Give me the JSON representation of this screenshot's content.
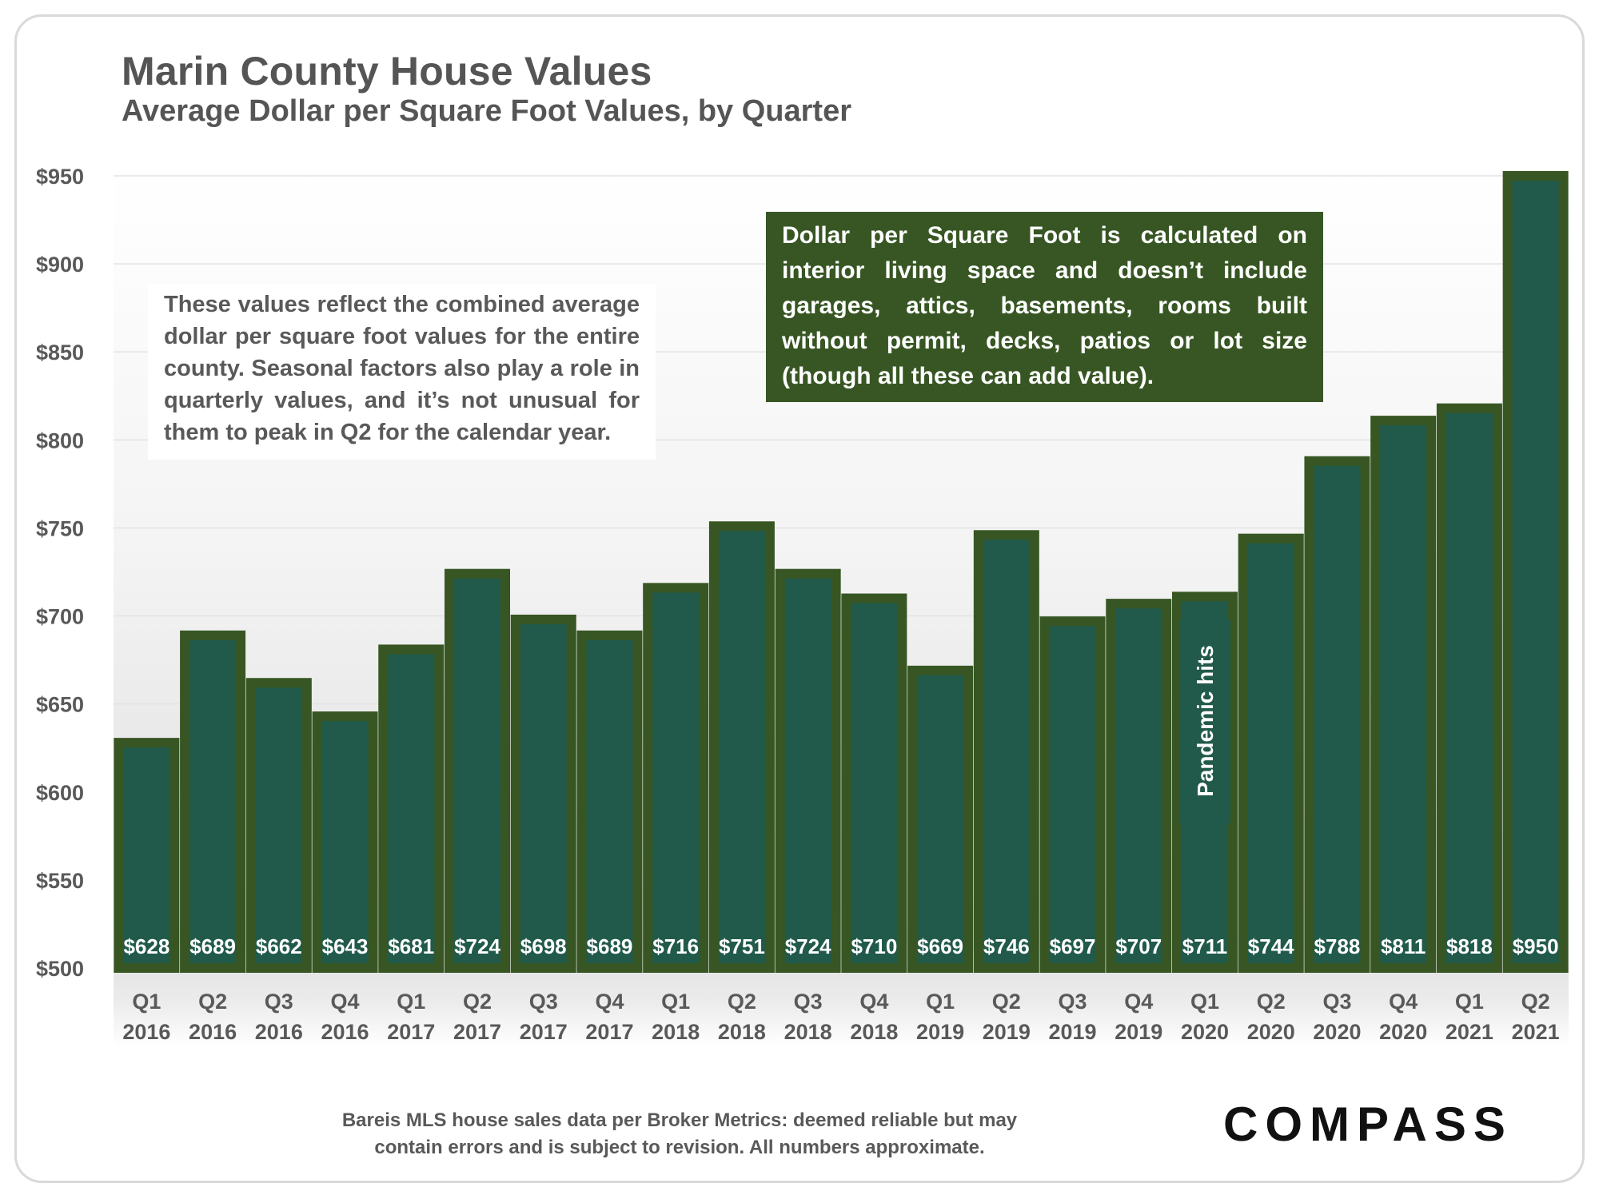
{
  "header": {
    "title": "Marin County House Values",
    "subtitle": "Average Dollar per Square Foot Values, by Quarter"
  },
  "notes": {
    "left": "These values reflect the combined average dollar per square foot values for the entire county. Seasonal factors also play a role in quarterly values, and it’s not unusual for them to peak in Q2 for the calendar year.",
    "right": "Dollar per Square Foot is calculated on interior living space and doesn’t include garages, attics, basements, rooms built without permit, decks, patios or lot size (though all these can add value).",
    "annotation": "Pandemic hits"
  },
  "footer": {
    "source": "Bareis MLS house sales data per Broker Metrics:  deemed reliable but may contain errors and is subject to revision. All numbers approximate.",
    "logo": "COMPASS"
  },
  "colors": {
    "bar_fill": "#215a4a",
    "bar_border": "#375623",
    "text_gray": "#595959"
  },
  "chart_data": {
    "type": "bar",
    "categories": [
      [
        "Q1",
        "2016"
      ],
      [
        "Q2",
        "2016"
      ],
      [
        "Q3",
        "2016"
      ],
      [
        "Q4",
        "2016"
      ],
      [
        "Q1",
        "2017"
      ],
      [
        "Q2",
        "2017"
      ],
      [
        "Q3",
        "2017"
      ],
      [
        "Q4",
        "2017"
      ],
      [
        "Q1",
        "2018"
      ],
      [
        "Q2",
        "2018"
      ],
      [
        "Q3",
        "2018"
      ],
      [
        "Q4",
        "2018"
      ],
      [
        "Q1",
        "2019"
      ],
      [
        "Q2",
        "2019"
      ],
      [
        "Q3",
        "2019"
      ],
      [
        "Q4",
        "2019"
      ],
      [
        "Q1",
        "2020"
      ],
      [
        "Q2",
        "2020"
      ],
      [
        "Q3",
        "2020"
      ],
      [
        "Q4",
        "2020"
      ],
      [
        "Q1",
        "2021"
      ],
      [
        "Q2",
        "2021"
      ]
    ],
    "values": [
      628,
      689,
      662,
      643,
      681,
      724,
      698,
      689,
      716,
      751,
      724,
      710,
      669,
      746,
      697,
      707,
      711,
      744,
      788,
      811,
      818,
      950
    ],
    "data_labels": [
      "$628",
      "$689",
      "$662",
      "$643",
      "$681",
      "$724",
      "$698",
      "$689",
      "$716",
      "$751",
      "$724",
      "$710",
      "$669",
      "$746",
      "$697",
      "$707",
      "$711",
      "$744",
      "$788",
      "$811",
      "$818",
      "$950"
    ],
    "ylim": [
      500,
      950
    ],
    "yticks": [
      500,
      550,
      600,
      650,
      700,
      750,
      800,
      850,
      900,
      950
    ],
    "ytick_labels": [
      "$500",
      "$550",
      "$600",
      "$650",
      "$700",
      "$750",
      "$800",
      "$850",
      "$900",
      "$950"
    ],
    "grid": true,
    "legend": "none"
  }
}
